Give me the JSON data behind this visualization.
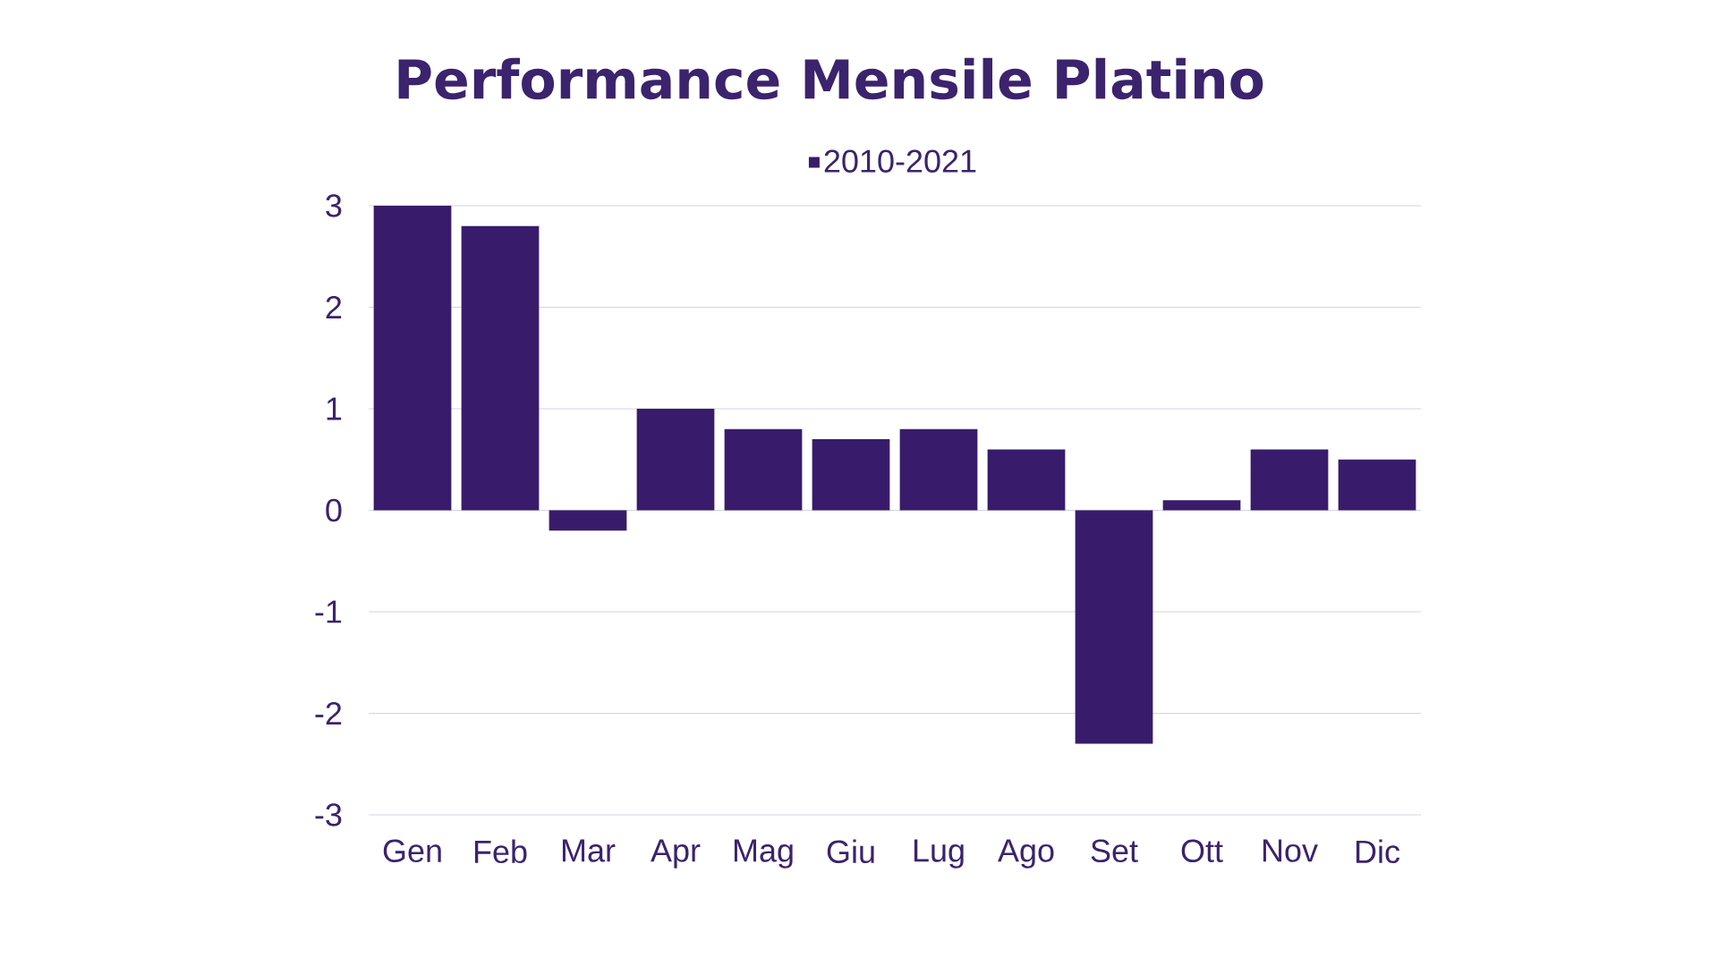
{
  "chart_data": {
    "type": "bar",
    "title": "Performance Mensile Platino",
    "categories": [
      "Gen",
      "Feb",
      "Mar",
      "Apr",
      "Mag",
      "Giu",
      "Lug",
      "Ago",
      "Set",
      "Ott",
      "Nov",
      "Dic"
    ],
    "series": [
      {
        "name": "2010-2021",
        "color": "#381c6b",
        "values": [
          3.0,
          2.8,
          -0.2,
          1.0,
          0.8,
          0.7,
          0.8,
          0.6,
          -2.3,
          0.1,
          0.6,
          0.5
        ]
      }
    ],
    "ylim": [
      -3,
      3
    ],
    "yticks": [
      -3,
      -2,
      -1,
      0,
      1,
      2,
      3
    ],
    "grid": "y",
    "legend": "top"
  }
}
